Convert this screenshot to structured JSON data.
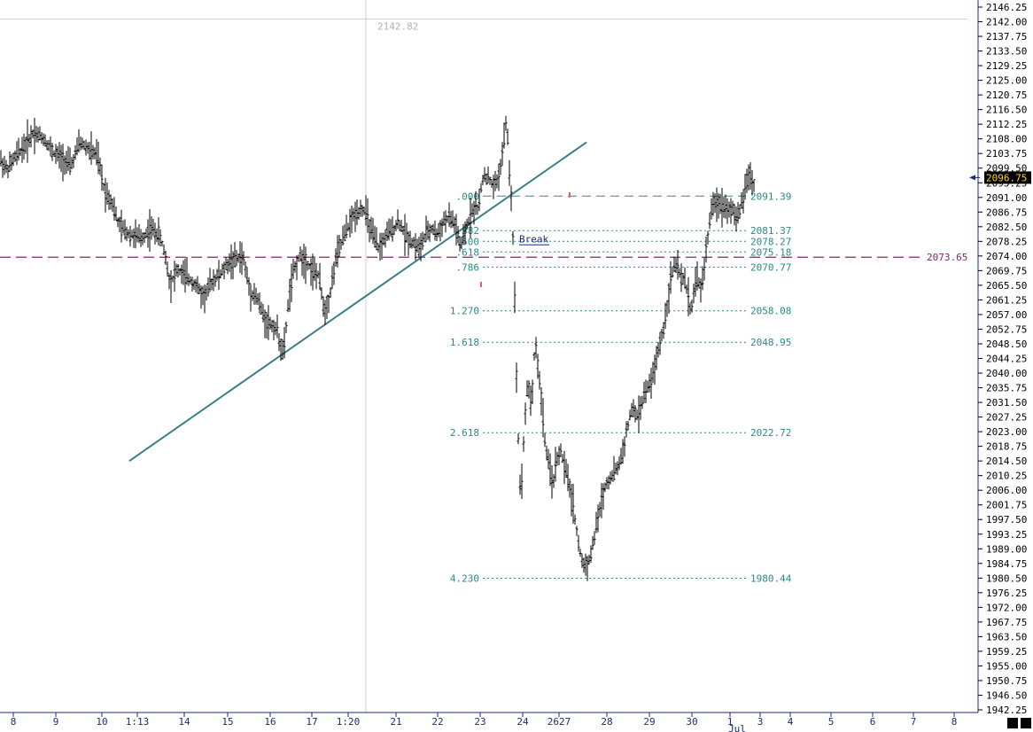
{
  "chart_data": {
    "type": "ohlc-bar",
    "ylim": [
      1942.25,
      2146.25
    ],
    "y_ticks": [
      "2146.25",
      "2142.00",
      "2137.75",
      "2133.50",
      "2129.25",
      "2125.00",
      "2120.75",
      "2116.50",
      "2112.25",
      "2108.00",
      "2103.75",
      "2099.50",
      "2095.25",
      "2091.00",
      "2086.75",
      "2082.50",
      "2078.25",
      "2074.00",
      "2069.75",
      "2065.50",
      "2061.25",
      "2057.00",
      "2052.75",
      "2048.50",
      "2044.25",
      "2040.00",
      "2035.75",
      "2031.50",
      "2027.25",
      "2023.00",
      "2018.75",
      "2014.50",
      "2010.25",
      "2006.00",
      "2001.75",
      "1997.50",
      "1993.25",
      "1989.00",
      "1984.75",
      "1980.50",
      "1976.25",
      "1972.00",
      "1967.75",
      "1963.50",
      "1959.25",
      "1955.00",
      "1950.75",
      "1946.50",
      "1942.25"
    ],
    "x_ticks": [
      {
        "label": "8",
        "x": 15
      },
      {
        "label": "9",
        "x": 63
      },
      {
        "label": "10",
        "x": 115
      },
      {
        "label": "1:13",
        "x": 155
      },
      {
        "label": "14",
        "x": 208
      },
      {
        "label": "15",
        "x": 257
      },
      {
        "label": "16",
        "x": 305
      },
      {
        "label": "17",
        "x": 352
      },
      {
        "label": "1:20",
        "x": 393
      },
      {
        "label": "21",
        "x": 447
      },
      {
        "label": "22",
        "x": 494
      },
      {
        "label": "23",
        "x": 542
      },
      {
        "label": "24",
        "x": 590
      },
      {
        "label": "2627",
        "x": 631
      },
      {
        "label": "28",
        "x": 685
      },
      {
        "label": "29",
        "x": 733
      },
      {
        "label": "30",
        "x": 781
      },
      {
        "label": "1",
        "x": 824
      },
      {
        "label": "3",
        "x": 858
      },
      {
        "label": "4",
        "x": 892
      },
      {
        "label": "5",
        "x": 938
      },
      {
        "label": "6",
        "x": 985
      },
      {
        "label": "7",
        "x": 1031
      },
      {
        "label": "8",
        "x": 1077
      }
    ],
    "month_label": "Jul",
    "last_price": "2096.75",
    "crosshair_value": "2142.82",
    "horizontal_line": {
      "value": 2073.65,
      "label": "2073.65",
      "color": "#7a2a6e"
    },
    "fib_levels": [
      {
        "ratio": ".000",
        "value": 2091.39,
        "label": "2091.39"
      },
      {
        "ratio": ".382",
        "value": 2081.37,
        "label": "2081.37"
      },
      {
        "ratio": ".500",
        "value": 2078.27,
        "label": "2078.27"
      },
      {
        "ratio": ".618",
        "value": 2075.18,
        "label": "2075.18"
      },
      {
        "ratio": ".786",
        "value": 2070.77,
        "label": "2070.77"
      },
      {
        "ratio": "1.270",
        "value": 2058.08,
        "label": "2058.08"
      },
      {
        "ratio": "1.618",
        "value": 2048.95,
        "label": "2048.95"
      },
      {
        "ratio": "2.618",
        "value": 2022.72,
        "label": "2022.72"
      },
      {
        "ratio": "4.230",
        "value": 1980.44,
        "label": "1980.44"
      }
    ],
    "annotation": "Break",
    "trendline": [
      [
        146,
        2014.5
      ],
      [
        662,
        2107.0
      ]
    ],
    "price_path": [
      [
        0,
        2102
      ],
      [
        8,
        2099
      ],
      [
        18,
        2103
      ],
      [
        28,
        2106
      ],
      [
        38,
        2110
      ],
      [
        50,
        2108
      ],
      [
        60,
        2104
      ],
      [
        72,
        2102
      ],
      [
        80,
        2100
      ],
      [
        90,
        2107
      ],
      [
        100,
        2105
      ],
      [
        110,
        2103
      ],
      [
        118,
        2093
      ],
      [
        126,
        2090
      ],
      [
        134,
        2083
      ],
      [
        142,
        2081
      ],
      [
        150,
        2080
      ],
      [
        160,
        2079
      ],
      [
        170,
        2082
      ],
      [
        180,
        2080
      ],
      [
        186,
        2075
      ],
      [
        192,
        2066
      ],
      [
        200,
        2070
      ],
      [
        210,
        2068
      ],
      [
        220,
        2066
      ],
      [
        230,
        2062
      ],
      [
        240,
        2067
      ],
      [
        250,
        2069
      ],
      [
        258,
        2072
      ],
      [
        266,
        2073
      ],
      [
        274,
        2074
      ],
      [
        282,
        2064
      ],
      [
        290,
        2062
      ],
      [
        298,
        2056
      ],
      [
        306,
        2054
      ],
      [
        312,
        2053
      ],
      [
        320,
        2045
      ],
      [
        326,
        2062
      ],
      [
        332,
        2070
      ],
      [
        338,
        2074
      ],
      [
        344,
        2073
      ],
      [
        352,
        2070
      ],
      [
        360,
        2068
      ],
      [
        366,
        2058
      ],
      [
        372,
        2062
      ],
      [
        378,
        2072
      ],
      [
        384,
        2077
      ],
      [
        392,
        2082
      ],
      [
        400,
        2086
      ],
      [
        408,
        2088
      ],
      [
        414,
        2086
      ],
      [
        420,
        2080
      ],
      [
        428,
        2076
      ],
      [
        436,
        2080
      ],
      [
        444,
        2082
      ],
      [
        450,
        2084
      ],
      [
        458,
        2080
      ],
      [
        466,
        2078
      ],
      [
        474,
        2076
      ],
      [
        480,
        2080
      ],
      [
        488,
        2082
      ],
      [
        494,
        2080
      ],
      [
        500,
        2084
      ],
      [
        508,
        2085
      ],
      [
        514,
        2083
      ],
      [
        520,
        2076
      ],
      [
        526,
        2082
      ],
      [
        534,
        2088
      ],
      [
        540,
        2088
      ],
      [
        546,
        2098
      ],
      [
        552,
        2096
      ],
      [
        558,
        2094
      ],
      [
        564,
        2098
      ],
      [
        568,
        2106
      ],
      [
        572,
        2114
      ],
      [
        575,
        2098
      ],
      [
        578,
        2088
      ],
      [
        580,
        2072
      ],
      [
        582,
        2050
      ],
      [
        584,
        2030
      ],
      [
        586,
        2012
      ],
      [
        588,
        2004
      ],
      [
        592,
        2025
      ],
      [
        596,
        2038
      ],
      [
        600,
        2030
      ],
      [
        604,
        2050
      ],
      [
        608,
        2040
      ],
      [
        612,
        2030
      ],
      [
        616,
        2018
      ],
      [
        620,
        2012
      ],
      [
        624,
        2008
      ],
      [
        628,
        2014
      ],
      [
        632,
        2018
      ],
      [
        636,
        2014
      ],
      [
        640,
        2010
      ],
      [
        644,
        2006
      ],
      [
        648,
        2000
      ],
      [
        652,
        1992
      ],
      [
        656,
        1986
      ],
      [
        660,
        1984
      ],
      [
        666,
        1986
      ],
      [
        672,
        1994
      ],
      [
        678,
        2002
      ],
      [
        684,
        2008
      ],
      [
        690,
        2010
      ],
      [
        696,
        2012
      ],
      [
        702,
        2016
      ],
      [
        708,
        2024
      ],
      [
        714,
        2030
      ],
      [
        720,
        2027
      ],
      [
        726,
        2033
      ],
      [
        732,
        2036
      ],
      [
        738,
        2040
      ],
      [
        744,
        2048
      ],
      [
        750,
        2054
      ],
      [
        756,
        2066
      ],
      [
        762,
        2072
      ],
      [
        768,
        2068
      ],
      [
        774,
        2066
      ],
      [
        780,
        2058
      ],
      [
        786,
        2068
      ],
      [
        792,
        2064
      ],
      [
        798,
        2078
      ],
      [
        802,
        2086
      ],
      [
        808,
        2090
      ],
      [
        814,
        2089
      ],
      [
        820,
        2088
      ],
      [
        826,
        2088
      ],
      [
        832,
        2084
      ],
      [
        836,
        2088
      ],
      [
        840,
        2092
      ],
      [
        844,
        2098
      ],
      [
        848,
        2096
      ],
      [
        852,
        2094
      ]
    ]
  }
}
